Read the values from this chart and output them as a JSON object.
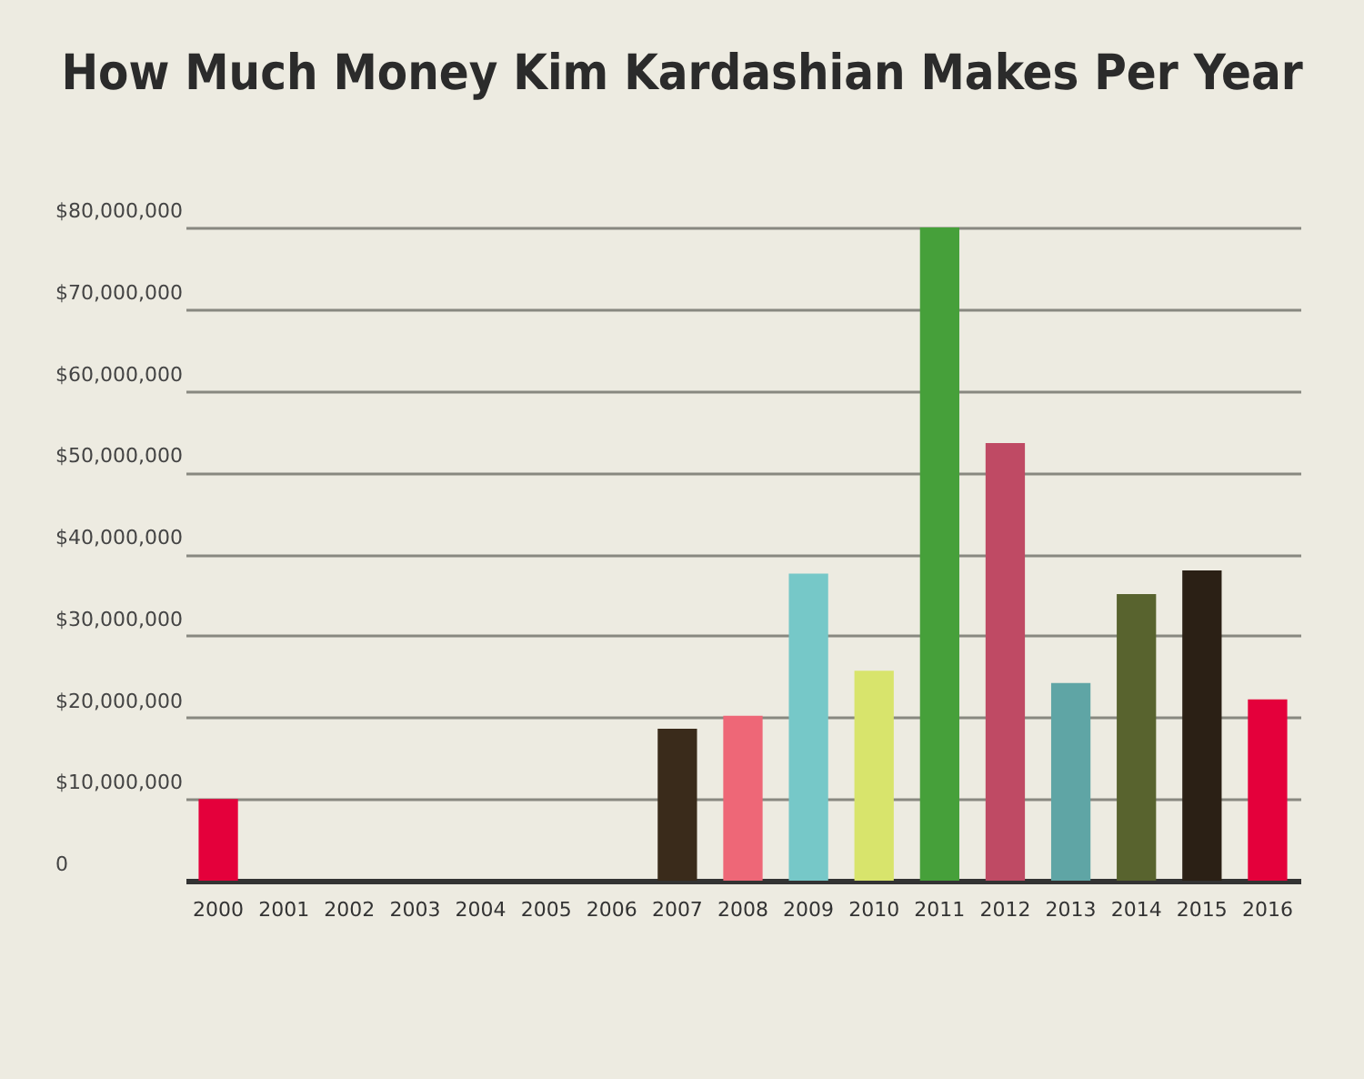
{
  "chart_data": {
    "type": "bar",
    "title": "How Much Money Kim Kardashian Makes Per Year",
    "categories": [
      "2000",
      "2001",
      "2002",
      "2003",
      "2004",
      "2005",
      "2006",
      "2007",
      "2008",
      "2009",
      "2010",
      "2011",
      "2012",
      "2013",
      "2014",
      "2015",
      "2016"
    ],
    "values": [
      10000000,
      null,
      null,
      null,
      null,
      null,
      null,
      18600000,
      20200000,
      37600000,
      25700000,
      80000000,
      53600000,
      24200000,
      35100000,
      38000000,
      22200000
    ],
    "colors": [
      "#e4003b",
      null,
      null,
      null,
      null,
      null,
      null,
      "#3a2b1b",
      "#ee6777",
      "#76c8c8",
      "#d8e46c",
      "#46a03a",
      "#bf4a64",
      "#5fa5a5",
      "#58632e",
      "#2b2015",
      "#e4003b"
    ],
    "ylim": [
      0,
      80000000
    ],
    "yticks": [
      0,
      {
        "value": 10000000,
        "label": "$10,000,000"
      },
      {
        "value": 20000000,
        "label": "$20,000,000"
      },
      {
        "value": 30000000,
        "label": "$30,000,000"
      },
      {
        "value": 40000000,
        "label": "$40,000,000"
      },
      {
        "value": 50000000,
        "label": "$50,000,000"
      },
      {
        "value": 60000000,
        "label": "$60,000,000"
      },
      {
        "value": 70000000,
        "label": "$70,000,000"
      },
      {
        "value": 80000000,
        "label": "$80,000,000"
      }
    ],
    "grid": "y"
  }
}
